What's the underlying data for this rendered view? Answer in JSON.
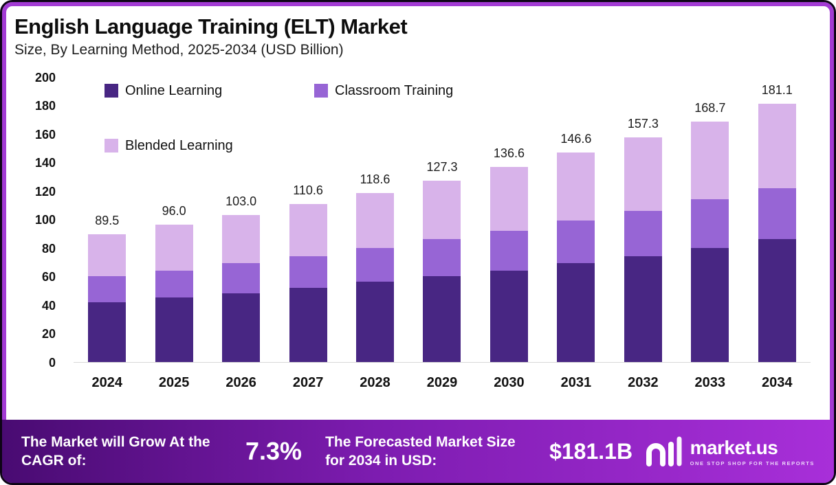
{
  "header": {
    "title": "English Language Training (ELT) Market",
    "subtitle": "Size, By Learning Method, 2025-2034 (USD Billion)"
  },
  "chart_data": {
    "type": "bar",
    "stacked": true,
    "title": "English Language Training (ELT) Market Size, By Learning Method, 2025-2034 (USD Billion)",
    "categories": [
      "2024",
      "2025",
      "2026",
      "2027",
      "2028",
      "2029",
      "2030",
      "2031",
      "2032",
      "2033",
      "2034"
    ],
    "series": [
      {
        "name": "Online Learning",
        "color": "#482683",
        "values": [
          42,
          45,
          48,
          52,
          56,
          60,
          64,
          69,
          74,
          80,
          86
        ]
      },
      {
        "name": "Classroom Training",
        "color": "#9765d5",
        "values": [
          18,
          19,
          21,
          22,
          24,
          26,
          28,
          30,
          32,
          34,
          36
        ]
      },
      {
        "name": "Blended Learning",
        "color": "#d8b3ea",
        "values": [
          29.5,
          32,
          34,
          36.6,
          38.6,
          41.3,
          44.6,
          47.6,
          51.3,
          54.7,
          59.1
        ]
      }
    ],
    "totals": [
      89.5,
      96.0,
      103.0,
      110.6,
      118.6,
      127.3,
      136.6,
      146.6,
      157.3,
      168.7,
      181.1
    ],
    "total_labels": [
      "89.5",
      "96.0",
      "103.0",
      "110.6",
      "118.6",
      "127.3",
      "136.6",
      "146.6",
      "157.3",
      "168.7",
      "181.1"
    ],
    "ylim": [
      0,
      200
    ],
    "yticks": [
      0,
      20,
      40,
      60,
      80,
      100,
      120,
      140,
      160,
      180,
      200
    ],
    "legend_position": "top-left",
    "grid": false
  },
  "banner": {
    "cagr_label": "The Market will Grow At the CAGR of:",
    "cagr_value": "7.3%",
    "forecast_label": "The Forecasted Market Size for 2034 in USD:",
    "forecast_value": "$181.1B",
    "brand": {
      "name": "market.us",
      "tagline": "ONE STOP SHOP FOR THE REPORTS"
    }
  },
  "colors": {
    "frame_inner_ring": "#a33bd4",
    "banner_gradient_start": "#490b72",
    "banner_gradient_end": "#a82fd9"
  }
}
